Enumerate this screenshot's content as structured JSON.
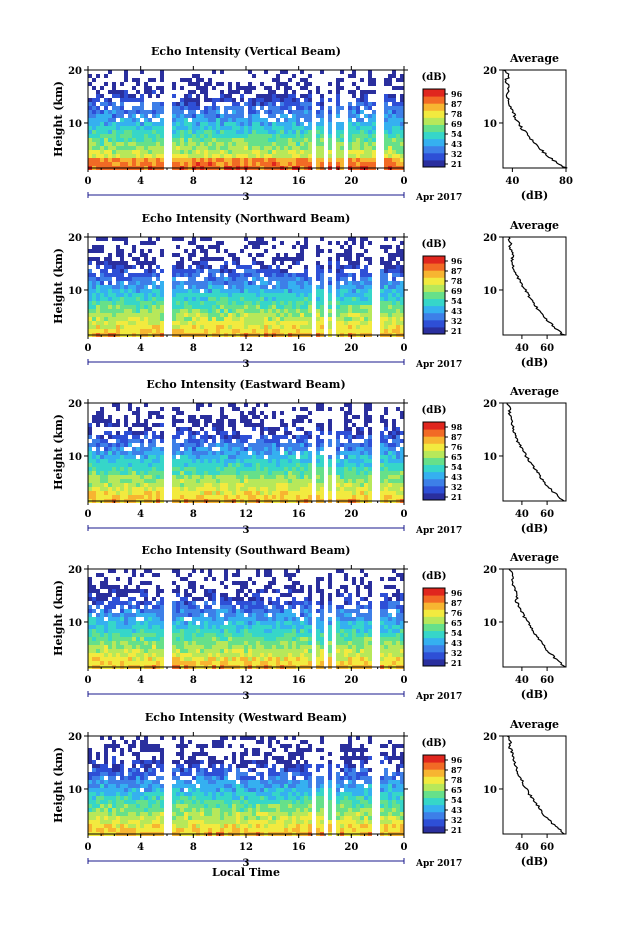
{
  "figure": {
    "xlabel": "Local Time",
    "date_label": "Apr 2017",
    "day_tick": "3",
    "colorbar_unit": "(dB)",
    "avg_title": "Average",
    "avg_xlabel": "(dB)"
  },
  "colors": {
    "colormap": [
      "#2a2f9e",
      "#2e4fd6",
      "#3d7fe8",
      "#35b0f0",
      "#36d6c9",
      "#66e08a",
      "#b7e85a",
      "#f2ea3f",
      "#f7b531",
      "#f26a25",
      "#e0261e"
    ],
    "tick_accent": "#1a1a8c"
  },
  "chart_data": [
    {
      "type": "heatmap",
      "title": "Echo Intensity (Vertical Beam)",
      "ylabel": "Height (km)",
      "x_ticks": [
        "0",
        "4",
        "8",
        "12",
        "16",
        "20",
        "0"
      ],
      "y_ticks": [
        "10",
        "20"
      ],
      "xlim": [
        0,
        24
      ],
      "ylim": [
        1.5,
        20
      ],
      "colorbar_ticks": [
        "96",
        "87",
        "78",
        "69",
        "54",
        "43",
        "32",
        "21"
      ],
      "clim": [
        21,
        96
      ],
      "data_gaps_hours": [
        [
          5.5,
          6.1
        ],
        [
          16.8,
          17.3
        ],
        [
          17.8,
          18.1
        ],
        [
          18.4,
          18.7
        ],
        [
          19.3,
          19.6
        ],
        [
          21.6,
          22.3
        ]
      ],
      "avg_profile": {
        "xlim": [
          33,
          80
        ],
        "x_ticks": [
          "40",
          "80"
        ],
        "y_ticks": [
          "10",
          "20"
        ],
        "height_km": [
          1.5,
          3,
          5,
          7,
          9,
          11,
          13,
          15,
          17,
          18,
          19,
          20
        ],
        "db": [
          80,
          70,
          61,
          54,
          47,
          42,
          39,
          36,
          37,
          35,
          38,
          34
        ]
      }
    },
    {
      "type": "heatmap",
      "title": "Echo Intensity (Northward Beam)",
      "ylabel": "Height (km)",
      "x_ticks": [
        "0",
        "4",
        "8",
        "12",
        "16",
        "20",
        "0"
      ],
      "y_ticks": [
        "10",
        "20"
      ],
      "xlim": [
        0,
        24
      ],
      "ylim": [
        1.5,
        20
      ],
      "colorbar_ticks": [
        "96",
        "87",
        "78",
        "69",
        "54",
        "43",
        "32",
        "21"
      ],
      "clim": [
        21,
        96
      ],
      "data_gaps_hours": [
        [
          5.5,
          6.1
        ],
        [
          16.8,
          17.3
        ],
        [
          17.8,
          18.1
        ],
        [
          18.4,
          18.7
        ],
        [
          21.4,
          22.1
        ]
      ],
      "avg_profile": {
        "xlim": [
          25,
          75
        ],
        "x_ticks": [
          "40",
          "60"
        ],
        "y_ticks": [
          "10",
          "20"
        ],
        "height_km": [
          1.5,
          3,
          5,
          7,
          9,
          11,
          13,
          15,
          17,
          18,
          19,
          20
        ],
        "db": [
          73,
          66,
          57,
          51,
          45,
          40,
          35,
          32,
          33,
          30,
          31,
          29
        ]
      }
    },
    {
      "type": "heatmap",
      "title": "Echo Intensity (Eastward Beam)",
      "ylabel": "Height (km)",
      "x_ticks": [
        "0",
        "4",
        "8",
        "12",
        "16",
        "20",
        "0"
      ],
      "y_ticks": [
        "10",
        "20"
      ],
      "xlim": [
        0,
        24
      ],
      "ylim": [
        1.5,
        20
      ],
      "colorbar_ticks": [
        "98",
        "87",
        "76",
        "65",
        "54",
        "43",
        "32",
        "21"
      ],
      "clim": [
        21,
        98
      ],
      "data_gaps_hours": [
        [
          5.5,
          6.1
        ],
        [
          16.8,
          17.3
        ],
        [
          17.8,
          18.1
        ],
        [
          18.4,
          18.7
        ],
        [
          21.4,
          22.1
        ]
      ],
      "avg_profile": {
        "xlim": [
          25,
          75
        ],
        "x_ticks": [
          "40",
          "60"
        ],
        "y_ticks": [
          "10",
          "20"
        ],
        "height_km": [
          1.5,
          3,
          5,
          7,
          9,
          11,
          13,
          15,
          17,
          18,
          19,
          20
        ],
        "db": [
          73,
          66,
          58,
          52,
          46,
          41,
          36,
          33,
          32,
          30,
          31,
          29
        ]
      }
    },
    {
      "type": "heatmap",
      "title": "Echo Intensity (Southward Beam)",
      "ylabel": "Height (km)",
      "x_ticks": [
        "0",
        "4",
        "8",
        "12",
        "16",
        "20",
        "0"
      ],
      "y_ticks": [
        "10",
        "20"
      ],
      "xlim": [
        0,
        24
      ],
      "ylim": [
        1.5,
        20
      ],
      "colorbar_ticks": [
        "96",
        "87",
        "76",
        "65",
        "54",
        "43",
        "32",
        "21"
      ],
      "clim": [
        21,
        96
      ],
      "data_gaps_hours": [
        [
          5.5,
          6.1
        ],
        [
          16.8,
          17.3
        ],
        [
          17.8,
          18.1
        ],
        [
          18.4,
          18.7
        ],
        [
          21.4,
          22.1
        ]
      ],
      "avg_profile": {
        "xlim": [
          25,
          75
        ],
        "x_ticks": [
          "40",
          "60"
        ],
        "y_ticks": [
          "10",
          "20"
        ],
        "height_km": [
          1.5,
          3,
          5,
          7,
          9,
          11,
          13,
          14,
          15,
          17,
          19,
          20
        ],
        "db": [
          74,
          67,
          59,
          53,
          47,
          42,
          38,
          35,
          37,
          33,
          32,
          30
        ]
      }
    },
    {
      "type": "heatmap",
      "title": "Echo Intensity (Westward Beam)",
      "ylabel": "Height (km)",
      "x_ticks": [
        "0",
        "4",
        "8",
        "12",
        "16",
        "20",
        "0"
      ],
      "y_ticks": [
        "10",
        "20"
      ],
      "xlim": [
        0,
        24
      ],
      "ylim": [
        1.5,
        20
      ],
      "colorbar_ticks": [
        "96",
        "87",
        "78",
        "65",
        "54",
        "43",
        "32",
        "21"
      ],
      "clim": [
        21,
        96
      ],
      "data_gaps_hours": [
        [
          5.5,
          6.1
        ],
        [
          16.8,
          17.3
        ],
        [
          17.8,
          18.1
        ],
        [
          18.4,
          18.7
        ],
        [
          21.4,
          22.1
        ]
      ],
      "avg_profile": {
        "xlim": [
          25,
          75
        ],
        "x_ticks": [
          "40",
          "60"
        ],
        "y_ticks": [
          "10",
          "20"
        ],
        "height_km": [
          1.5,
          3,
          5,
          7,
          9,
          11,
          13,
          15,
          17,
          18,
          19,
          20
        ],
        "db": [
          74,
          66,
          58,
          52,
          46,
          41,
          37,
          34,
          32,
          30,
          31,
          29
        ]
      }
    }
  ]
}
